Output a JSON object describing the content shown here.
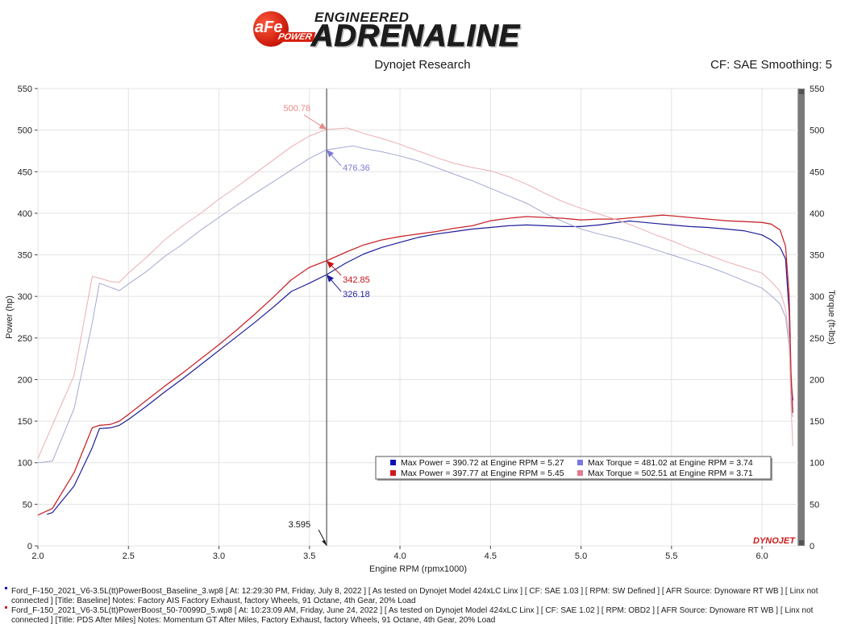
{
  "header": {
    "logo_brand": "aFe",
    "logo_power": "POWER",
    "logo_line1": "ENGINEERED",
    "logo_line2": "ADRENALINE",
    "title": "Dynojet Research",
    "info": "CF: SAE Smoothing: 5"
  },
  "chart_data": {
    "type": "line",
    "xlabel": "Engine RPM (rpmx1000)",
    "ylabel_left": "Power (hp)",
    "ylabel_right": "Torque (ft-lbs)",
    "xlim": [
      2.0,
      6.2
    ],
    "ylim": [
      0,
      550
    ],
    "x_ticks": [
      "2.0",
      "2.5",
      "3.0",
      "3.5",
      "4.0",
      "4.5",
      "5.0",
      "5.5",
      "6.0"
    ],
    "y_ticks": [
      "0",
      "50",
      "100",
      "150",
      "200",
      "250",
      "300",
      "350",
      "400",
      "450",
      "500",
      "550"
    ],
    "grid": true,
    "watermark": "DYNOJET",
    "cursor": {
      "x": 3.595,
      "label": "3.595"
    },
    "annotations": [
      {
        "label": "500.78",
        "x": 3.595,
        "y": 500.78,
        "color": "#e88a8a"
      },
      {
        "label": "476.36",
        "x": 3.595,
        "y": 476.36,
        "color": "#7b7bd6"
      },
      {
        "label": "342.85",
        "x": 3.595,
        "y": 342.85,
        "color": "#c0141c"
      },
      {
        "label": "326.18",
        "x": 3.595,
        "y": 326.18,
        "color": "#1c1c9e"
      }
    ],
    "legend": [
      {
        "color": "#1010b8",
        "text": "Max Power = 390.72 at Engine RPM = 5.27"
      },
      {
        "color": "#7878e0",
        "text": "Max Torque = 481.02 at Engine RPM = 3.74"
      },
      {
        "color": "#d01a1a",
        "text": "Max Power = 397.77 at Engine RPM = 5.45"
      },
      {
        "color": "#e57a90",
        "text": "Max Torque = 502.51 at Engine RPM = 3.71"
      }
    ],
    "series": [
      {
        "color": "#1e1e9a",
        "width": 1.2,
        "x": [
          2.05,
          2.08,
          2.2,
          2.3,
          2.34,
          2.4,
          2.45,
          2.5,
          2.6,
          2.7,
          2.8,
          2.9,
          3.0,
          3.1,
          3.2,
          3.3,
          3.4,
          3.5,
          3.595,
          3.7,
          3.8,
          3.9,
          4.0,
          4.1,
          4.2,
          4.3,
          4.4,
          4.5,
          4.6,
          4.7,
          4.8,
          4.9,
          5.0,
          5.1,
          5.2,
          5.27,
          5.3,
          5.4,
          5.5,
          5.6,
          5.7,
          5.8,
          5.9,
          6.0,
          6.05,
          6.1,
          6.13,
          6.15,
          6.16,
          6.17
        ],
        "y": [
          38,
          40,
          72,
          118,
          141,
          142,
          145,
          152,
          168,
          185,
          201,
          218,
          235,
          252,
          269,
          287,
          306,
          316,
          326.18,
          340,
          351,
          359,
          365,
          371,
          375,
          378,
          381,
          383,
          385,
          386,
          385,
          384,
          384,
          386,
          389,
          390.72,
          390,
          388,
          386,
          384,
          383,
          381,
          379,
          374,
          368,
          359,
          345,
          280,
          200,
          175
        ]
      },
      {
        "color": "#a4a8d2",
        "width": 1.0,
        "x": [
          2.0,
          2.08,
          2.2,
          2.3,
          2.34,
          2.4,
          2.45,
          2.5,
          2.6,
          2.7,
          2.8,
          2.9,
          3.0,
          3.1,
          3.2,
          3.3,
          3.4,
          3.5,
          3.595,
          3.74,
          3.8,
          3.9,
          4.0,
          4.1,
          4.2,
          4.3,
          4.4,
          4.5,
          4.6,
          4.7,
          4.8,
          4.9,
          5.0,
          5.1,
          5.2,
          5.3,
          5.4,
          5.5,
          5.6,
          5.7,
          5.8,
          5.9,
          6.0,
          6.05,
          6.1,
          6.13,
          6.15,
          6.16,
          6.17
        ],
        "y": [
          100,
          102,
          165,
          268,
          316,
          311,
          307,
          315,
          330,
          348,
          363,
          380,
          395,
          410,
          424,
          438,
          452,
          466,
          476.36,
          481.02,
          478,
          474,
          469,
          463,
          455,
          447,
          439,
          430,
          421,
          412,
          400,
          390,
          381,
          375,
          370,
          364,
          357,
          350,
          343,
          336,
          328,
          319,
          310,
          301,
          291,
          275,
          240,
          180,
          155
        ]
      },
      {
        "color": "#c8282e",
        "width": 1.3,
        "x": [
          2.0,
          2.08,
          2.2,
          2.3,
          2.34,
          2.4,
          2.45,
          2.5,
          2.6,
          2.7,
          2.8,
          2.9,
          3.0,
          3.1,
          3.2,
          3.3,
          3.4,
          3.5,
          3.595,
          3.7,
          3.8,
          3.9,
          4.0,
          4.1,
          4.2,
          4.3,
          4.4,
          4.5,
          4.6,
          4.7,
          4.8,
          4.9,
          5.0,
          5.1,
          5.2,
          5.3,
          5.45,
          5.5,
          5.6,
          5.7,
          5.8,
          5.9,
          6.0,
          6.05,
          6.1,
          6.13,
          6.15,
          6.16,
          6.17
        ],
        "y": [
          37,
          45,
          88,
          142,
          145,
          146,
          150,
          158,
          175,
          192,
          208,
          225,
          242,
          260,
          279,
          299,
          320,
          335,
          342.85,
          353,
          362,
          368,
          372,
          375,
          378,
          382,
          385,
          391,
          394,
          396,
          395,
          394,
          392,
          393,
          393,
          395,
          397.77,
          397,
          395,
          393,
          391,
          390,
          389,
          387,
          380,
          360,
          300,
          210,
          160
        ]
      },
      {
        "color": "#ecaeb2",
        "width": 1.0,
        "x": [
          2.0,
          2.05,
          2.2,
          2.3,
          2.34,
          2.4,
          2.45,
          2.5,
          2.6,
          2.7,
          2.8,
          2.9,
          3.0,
          3.1,
          3.2,
          3.3,
          3.4,
          3.5,
          3.595,
          3.71,
          3.8,
          3.9,
          4.0,
          4.1,
          4.2,
          4.3,
          4.4,
          4.5,
          4.6,
          4.7,
          4.8,
          4.9,
          5.0,
          5.1,
          5.2,
          5.3,
          5.4,
          5.5,
          5.6,
          5.7,
          5.8,
          5.9,
          6.0,
          6.05,
          6.1,
          6.13,
          6.15,
          6.16,
          6.17
        ],
        "y": [
          105,
          130,
          205,
          324,
          322,
          318,
          317,
          328,
          347,
          368,
          385,
          400,
          417,
          432,
          448,
          464,
          480,
          493,
          500.78,
          502.51,
          496,
          490,
          483,
          475,
          467,
          460,
          455,
          451,
          444,
          435,
          424,
          414,
          406,
          399,
          392,
          384,
          375,
          367,
          358,
          350,
          342,
          335,
          328,
          318,
          306,
          285,
          250,
          170,
          120
        ]
      }
    ]
  },
  "footer": {
    "lines": [
      {
        "color": "#1010b8",
        "text": "Ford_F-150_2021_V6-3.5L(tt)PowerBoost_Baseline_3.wp8 [ At: 12:29:30 PM, Friday, July 8, 2022 ] [ As tested on Dynojet Model 424xLC Linx ] [ CF: SAE 1.03 ] [ RPM: SW Defined ] [ AFR Source: Dynoware RT WB ] [ Linx not connected ] [Title: Baseline]  Notes: Factory AIS  Factory Exhaust, factory Wheels, 91 Octane, 4th Gear, 20% Load"
      },
      {
        "color": "#d01a1a",
        "text": "Ford_F-150_2021_V6-3.5L(tt)PowerBoost_50-70099D_5.wp8 [ At: 10:23:09 AM, Friday, June 24, 2022 ] [ As tested on Dynojet Model 424xLC Linx ] [ CF: SAE 1.02 ] [ RPM: OBD2 ] [ AFR Source: Dynoware RT WB ] [ Linx not connected ] [Title: PDS After Miles]  Notes: Momentum GT After Miles, Factory Exhaust, factory Wheels, 91 Octane, 4th Gear, 20% Load"
      }
    ]
  }
}
